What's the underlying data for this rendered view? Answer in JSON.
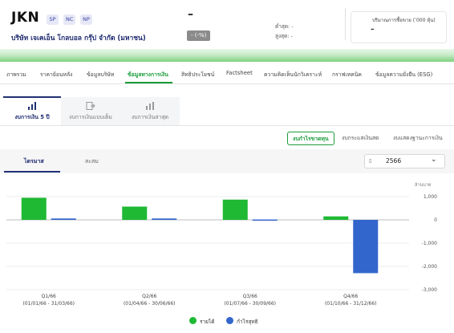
{
  "header": {
    "ticker": "JKN",
    "badges": [
      "SP",
      "NC",
      "NP"
    ],
    "company_name": "บริษัท เจเคเอ็น โกลบอล กรุ๊ป จำกัด (มหาชน)",
    "price": "–",
    "change": "- (-%)",
    "low_label": "ต่ำสุด: -",
    "high_label": "สูงสุด: -",
    "volume_label": "ปริมาณการซื้อขาย (’000 หุ้น)",
    "volume_value": "–"
  },
  "nav": {
    "items": [
      "ภาพรวม",
      "ราคาย้อนหลัง",
      "ข้อมูลบริษัท",
      "ข้อมูลทางการเงิน",
      "สิทธิประโยชน์",
      "Factsheet",
      "ความคิดเห็นนักวิเคราะห์",
      "กราฟเทคนิค",
      "ข้อมูลความยั่งยืน (ESG)"
    ],
    "active": "ข้อมูลทางการเงิน"
  },
  "subtabs": {
    "items": [
      "งบการเงิน 5 ปี",
      "งบการเงินแบบเต็ม",
      "งบการเงินล่าสุด"
    ],
    "active": "งบการเงิน 5 ปี"
  },
  "statements": {
    "items": [
      "งบกำไรขาดทุน",
      "งบกระแสเงินสด",
      "งบแสดงฐานะการเงิน"
    ],
    "active": "งบกำไรขาดทุน"
  },
  "period": {
    "tabs": [
      "ไตรมาส",
      "สะสม"
    ],
    "active": "ไตรมาส",
    "year": "2566"
  },
  "chart_data": {
    "type": "bar",
    "unit_label": "ล้านบาท",
    "categories": [
      "Q1/66",
      "Q2/66",
      "Q3/66",
      "Q4/66"
    ],
    "category_subtitles": [
      "(01/01/66 - 31/03/66)",
      "(01/04/66 - 30/06/66)",
      "(01/07/66 - 30/09/66)",
      "(01/10/66 - 31/12/66)"
    ],
    "series": [
      {
        "name": "รายได้",
        "color": "#1fb934",
        "values": [
          950,
          570,
          870,
          150
        ]
      },
      {
        "name": "กำไรสุทธิ",
        "color": "#3366cc",
        "values": [
          60,
          60,
          15,
          -2290
        ]
      }
    ],
    "ylim": [
      -3000,
      1000
    ],
    "yticks": [
      1000,
      0,
      -1000,
      -2000,
      -3000
    ],
    "ytick_labels": [
      "1,000",
      "0",
      "-1,000",
      "-2,000",
      "-3,000"
    ],
    "grid": true,
    "legend": "bottom-center"
  }
}
